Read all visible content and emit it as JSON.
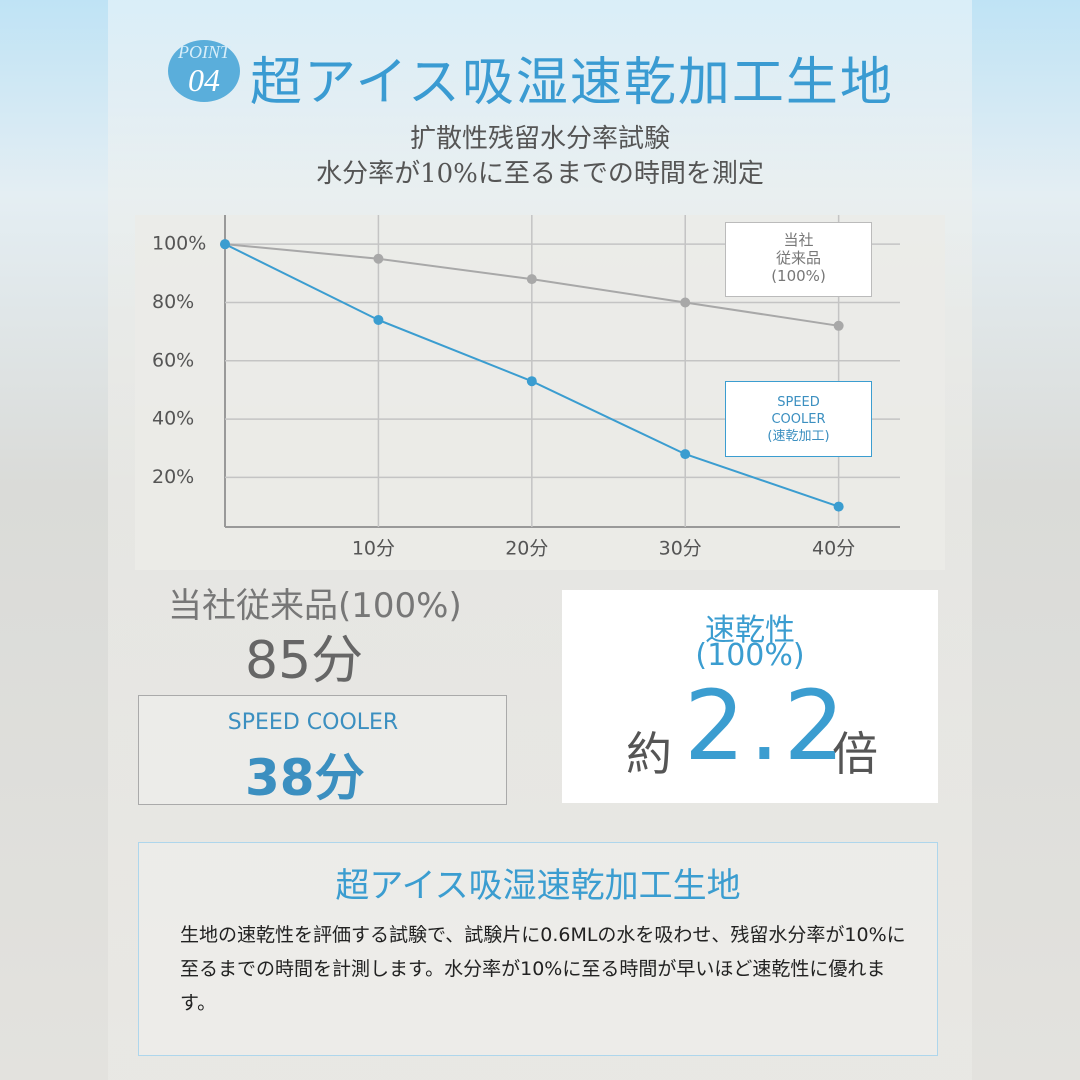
{
  "header": {
    "badge_word": "POINT",
    "badge_number": "04",
    "title": "超アイス吸湿速乾加工生地",
    "subtitle_lines": [
      "扩散性残留水分率試験",
      "水分率が10%に至るまでの時間を測定"
    ]
  },
  "chart_data": {
    "type": "line",
    "x": [
      0,
      10,
      20,
      30,
      40
    ],
    "xlim": [
      0,
      44
    ],
    "xticks": [
      {
        "value": 10,
        "label": "10分"
      },
      {
        "value": 20,
        "label": "20分"
      },
      {
        "value": 30,
        "label": "30分"
      },
      {
        "value": 40,
        "label": "40分"
      }
    ],
    "ylim": [
      3,
      110
    ],
    "yticks": [
      {
        "value": 20,
        "label": "20%"
      },
      {
        "value": 40,
        "label": "40%"
      },
      {
        "value": 60,
        "label": "60%"
      },
      {
        "value": 80,
        "label": "80%"
      },
      {
        "value": 100,
        "label": "100%"
      }
    ],
    "grid": true,
    "series": [
      {
        "name": "当社\n従来品\n(100%)",
        "color": "#a8a8a8",
        "values": [
          100,
          95,
          88,
          80,
          72
        ]
      },
      {
        "name": "SPEED\nCOOLER\n(速乾加工)",
        "color": "#3b9dd0",
        "values": [
          100,
          74,
          53,
          28,
          10
        ]
      }
    ]
  },
  "summary": {
    "regular_label": "当社従来品(100%)",
    "regular_time": "85分",
    "speed_label": "SPEED COOLER",
    "speed_time": "38分",
    "ratio_label": "速乾性",
    "ratio_sub": "(100%)",
    "ratio_prefix": "約",
    "ratio_value": "2.2",
    "ratio_suffix": "倍"
  },
  "description": {
    "title": "超アイス吸湿速乾加工生地",
    "text": "生地の速乾性を評価する試験で、試験片に0.6MLの水を吸わせ、残留水分率が10%に至るまでの時間を計測します。水分率が10%に至る時間が早いほど速乾性に優れます。"
  }
}
